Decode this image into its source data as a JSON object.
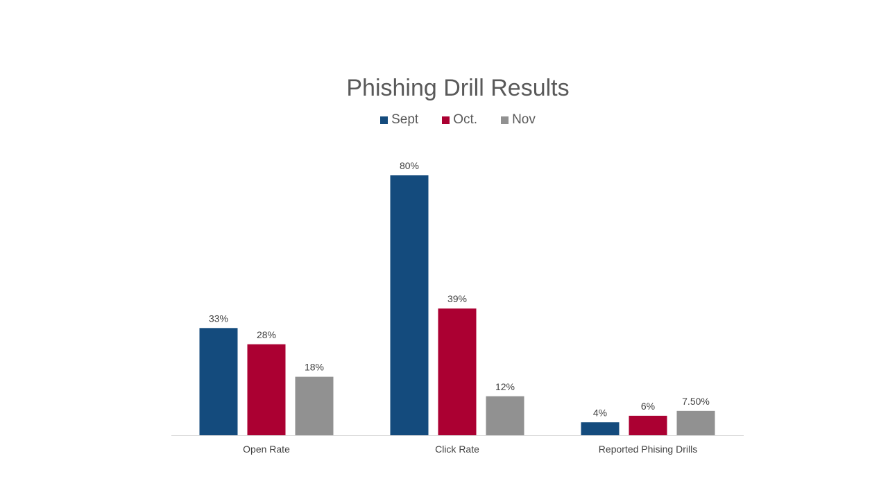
{
  "chart_data": {
    "type": "bar",
    "title": "Phishing Drill Results",
    "categories": [
      "Open Rate",
      "Click Rate",
      "Reported Phising Drills"
    ],
    "series": [
      {
        "name": "Sept",
        "color": "#144b7d",
        "values": [
          33,
          80,
          4
        ],
        "labels": [
          "33%",
          "80%",
          "4%"
        ]
      },
      {
        "name": "Oct.",
        "color": "#ab0032",
        "values": [
          28,
          39,
          6
        ],
        "labels": [
          "28%",
          "39%",
          "6%"
        ]
      },
      {
        "name": "Nov",
        "color": "#919191",
        "values": [
          18,
          12,
          7.5
        ],
        "labels": [
          "18%",
          "12%",
          "7.50%"
        ]
      }
    ],
    "legend_position": "top",
    "grid": false,
    "ylim": [
      0,
      80
    ]
  }
}
